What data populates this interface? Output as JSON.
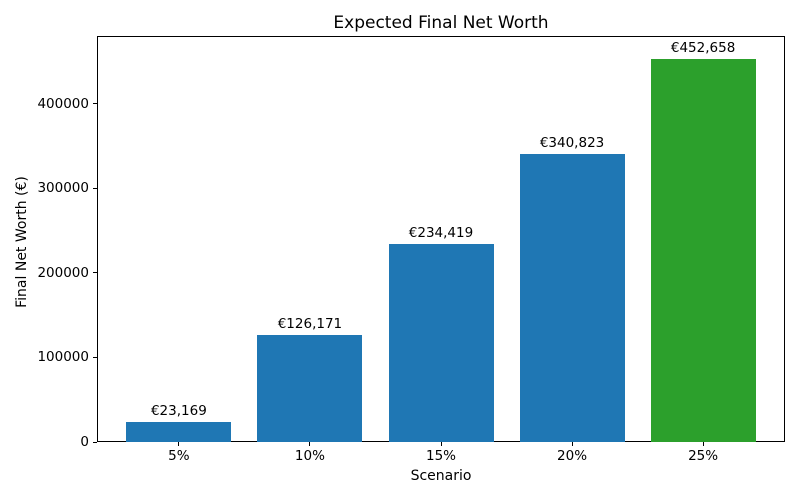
{
  "chart_data": {
    "type": "bar",
    "title": "Expected Final Net Worth",
    "xlabel": "Scenario",
    "ylabel": "Final Net Worth (€)",
    "categories": [
      "5%",
      "10%",
      "15%",
      "20%",
      "25%"
    ],
    "values": [
      23169,
      126171,
      234419,
      340823,
      452658
    ],
    "value_labels": [
      "€23,169",
      "€126,171",
      "€234,419",
      "€340,823",
      "€452,658"
    ],
    "bar_colors": [
      "#1f77b4",
      "#1f77b4",
      "#1f77b4",
      "#1f77b4",
      "#2ca02c"
    ],
    "yticks": [
      0,
      100000,
      200000,
      300000,
      400000
    ],
    "ytick_labels": [
      "0",
      "100000",
      "200000",
      "300000",
      "400000"
    ],
    "ylim": [
      0,
      480000
    ],
    "grid": false,
    "legend": null,
    "spine_color": "#000000",
    "background_color": "#ffffff"
  }
}
